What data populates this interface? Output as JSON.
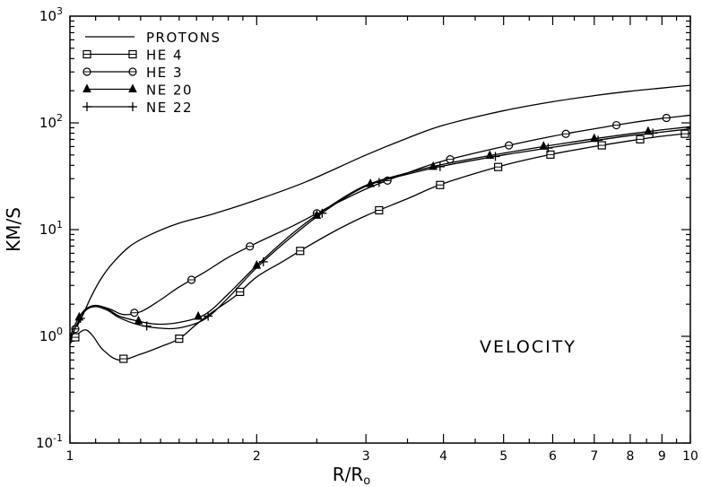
{
  "chart_data": {
    "type": "line",
    "title": "",
    "annotation": "VELOCITY",
    "xlabel": "R/R",
    "xlabel_subscript": "o",
    "ylabel": "KM/S",
    "xscale": "log",
    "yscale": "log",
    "xlim": [
      1,
      10
    ],
    "ylim": [
      0.1,
      1000
    ],
    "x_tick_labels": [
      {
        "v": 1,
        "t": "1"
      },
      {
        "v": 2,
        "t": "2"
      },
      {
        "v": 3,
        "t": "3"
      },
      {
        "v": 4,
        "t": "4"
      },
      {
        "v": 5,
        "t": "5"
      },
      {
        "v": 6,
        "t": "6"
      },
      {
        "v": 7,
        "t": "7"
      },
      {
        "v": 8,
        "t": "8"
      },
      {
        "v": 9,
        "t": "9"
      },
      {
        "v": 10,
        "t": "10"
      }
    ],
    "y_tick_labels": [
      {
        "v": 0.1,
        "base": "10",
        "exp": "-1"
      },
      {
        "v": 1,
        "base": "10",
        "exp": "0"
      },
      {
        "v": 10,
        "base": "10",
        "exp": "1"
      },
      {
        "v": 100,
        "base": "10",
        "exp": "2"
      },
      {
        "v": 1000,
        "base": "10",
        "exp": "3"
      }
    ],
    "legend_position": "top-left",
    "grid": false,
    "series": [
      {
        "name": "PROTONS",
        "marker": "none",
        "x": [
          1.0,
          1.02,
          1.05,
          1.08,
          1.12,
          1.17,
          1.25,
          1.35,
          1.5,
          1.7,
          2.0,
          2.4,
          3.0,
          3.5,
          4.0,
          5.0,
          6.0,
          7.0,
          8.0,
          9.0,
          10.0
        ],
        "y": [
          0.9,
          1.15,
          1.6,
          2.3,
          3.4,
          4.8,
          7.0,
          9.0,
          11.5,
          14.0,
          19.0,
          28.0,
          50.0,
          72.0,
          95.0,
          130.0,
          158.0,
          180.0,
          198.0,
          212.0,
          225.0
        ],
        "markers_x": []
      },
      {
        "name": "HE 4",
        "marker": "square",
        "x": [
          1.0,
          1.03,
          1.06,
          1.09,
          1.13,
          1.2,
          1.3,
          1.4,
          1.5,
          1.6,
          1.7,
          1.85,
          2.0,
          2.2,
          2.4,
          2.7,
          3.0,
          3.5,
          4.0,
          5.0,
          6.0,
          7.0,
          8.0,
          9.0,
          10.0
        ],
        "y": [
          0.85,
          1.05,
          1.15,
          1.0,
          0.75,
          0.6,
          0.68,
          0.8,
          0.95,
          1.3,
          1.7,
          2.4,
          3.6,
          5.0,
          6.8,
          10.0,
          13.5,
          19.5,
          27.0,
          40.0,
          51.0,
          60.0,
          68.0,
          75.0,
          80.0
        ],
        "markers_x": [
          1.02,
          1.22,
          1.5,
          1.88,
          2.35,
          3.15,
          3.95,
          4.9,
          5.95,
          7.2,
          8.3,
          9.8
        ]
      },
      {
        "name": "HE 3",
        "marker": "circle",
        "x": [
          1.0,
          1.03,
          1.06,
          1.1,
          1.16,
          1.22,
          1.3,
          1.4,
          1.5,
          1.65,
          1.8,
          2.0,
          2.3,
          2.6,
          3.0,
          3.5,
          4.0,
          5.0,
          6.0,
          7.0,
          8.0,
          9.0,
          10.0
        ],
        "y": [
          0.95,
          1.3,
          1.75,
          1.95,
          1.8,
          1.6,
          1.7,
          2.2,
          2.9,
          4.0,
          5.5,
          7.5,
          11.0,
          16.0,
          24.0,
          34.0,
          44.0,
          60.0,
          75.0,
          88.0,
          100.0,
          110.0,
          118.0
        ],
        "markers_x": [
          1.02,
          1.27,
          1.57,
          1.95,
          2.5,
          3.25,
          4.1,
          5.1,
          6.3,
          7.6,
          9.15
        ]
      },
      {
        "name": "NE 20",
        "marker": "triangle",
        "x": [
          1.0,
          1.03,
          1.06,
          1.1,
          1.15,
          1.2,
          1.28,
          1.38,
          1.5,
          1.65,
          1.8,
          2.0,
          2.3,
          2.6,
          3.0,
          3.5,
          4.0,
          5.0,
          6.0,
          7.0,
          8.0,
          9.0,
          10.0
        ],
        "y": [
          1.0,
          1.45,
          1.8,
          1.95,
          1.8,
          1.55,
          1.4,
          1.3,
          1.35,
          1.6,
          2.5,
          4.6,
          9.5,
          16.0,
          26.0,
          34.0,
          41.0,
          52.0,
          62.0,
          71.0,
          79.0,
          86.0,
          92.0
        ],
        "markers_x": [
          1.035,
          1.29,
          1.61,
          2.0,
          2.5,
          3.05,
          3.85,
          4.75,
          5.8,
          7.0,
          8.55
        ]
      },
      {
        "name": "NE 22",
        "marker": "plus",
        "x": [
          1.0,
          1.03,
          1.06,
          1.1,
          1.15,
          1.2,
          1.28,
          1.38,
          1.5,
          1.65,
          1.8,
          2.0,
          2.3,
          2.6,
          3.0,
          3.5,
          4.0,
          5.0,
          6.0,
          7.0,
          8.0,
          9.0,
          10.0
        ],
        "y": [
          0.9,
          1.35,
          1.75,
          1.9,
          1.75,
          1.5,
          1.3,
          1.2,
          1.2,
          1.45,
          2.3,
          4.4,
          9.0,
          15.5,
          25.5,
          33.0,
          39.5,
          50.0,
          59.0,
          68.0,
          76.0,
          82.0,
          88.0
        ],
        "markers_x": [
          1.04,
          1.33,
          1.67,
          2.05,
          2.55,
          3.15,
          3.95,
          4.85,
          5.9,
          7.1,
          8.7
        ]
      }
    ]
  }
}
